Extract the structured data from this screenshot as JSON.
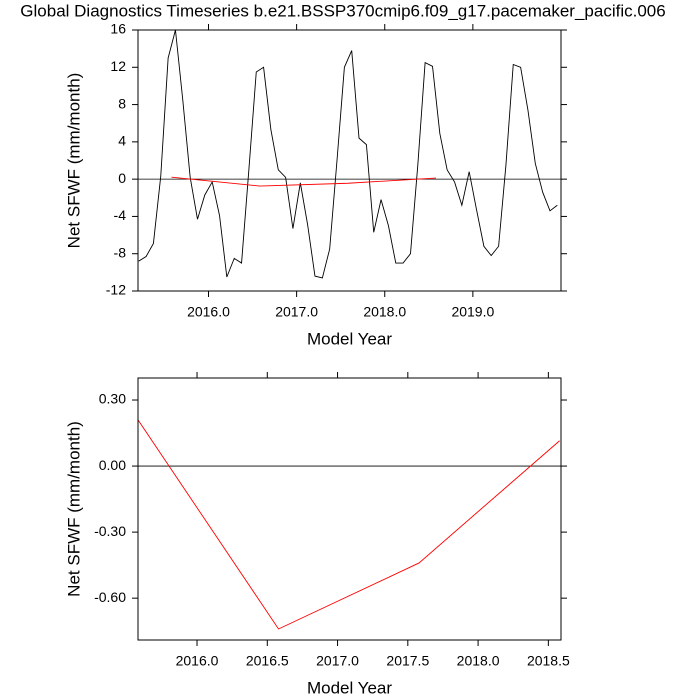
{
  "chart_data": [
    {
      "type": "line",
      "title": "Global Diagnostics Timeseries b.e21.BSSP370cmip6.f09_g17.pacemaker_pacific.006",
      "ylabel": "Net SFWF (mm/month)",
      "xlabel": "Model Year",
      "xlim": [
        2015.2,
        2020.0
      ],
      "ylim": [
        -12,
        16
      ],
      "xticks": [
        {
          "value": 2016,
          "label": "2016.0"
        },
        {
          "value": 2017,
          "label": "2017.0"
        },
        {
          "value": 2018,
          "label": "2018.0"
        },
        {
          "value": 2019,
          "label": "2019.0"
        }
      ],
      "yticks": [
        -12,
        -8,
        -4,
        0,
        4,
        8,
        12,
        16
      ],
      "reference_line": 0,
      "series": [
        {
          "color": "#000000",
          "x": [
            2015.208,
            2015.292,
            2015.375,
            2015.458,
            2015.542,
            2015.625,
            2015.708,
            2015.792,
            2015.875,
            2015.958,
            2016.042,
            2016.125,
            2016.208,
            2016.292,
            2016.375,
            2016.458,
            2016.542,
            2016.625,
            2016.708,
            2016.792,
            2016.875,
            2016.958,
            2017.042,
            2017.125,
            2017.208,
            2017.292,
            2017.375,
            2017.458,
            2017.542,
            2017.625,
            2017.708,
            2017.792,
            2017.875,
            2017.958,
            2018.042,
            2018.125,
            2018.208,
            2018.292,
            2018.375,
            2018.458,
            2018.542,
            2018.625,
            2018.708,
            2018.792,
            2018.875,
            2018.958,
            2019.042,
            2019.125,
            2019.208,
            2019.292,
            2019.375,
            2019.458,
            2019.542,
            2019.625,
            2019.708,
            2019.792,
            2019.875,
            2019.958
          ],
          "values": [
            -8.8,
            -8.3,
            -6.9,
            0.3,
            13,
            16,
            8.5,
            0.2,
            -4.3,
            -1.7,
            -0.3,
            -3.9,
            -10.5,
            -8.5,
            -9,
            1,
            11.5,
            12,
            5.3,
            1,
            0.2,
            -5.3,
            -0.4,
            -4.9,
            -10.4,
            -10.6,
            -7.5,
            2,
            12,
            13.8,
            4.4,
            3.7,
            -5.7,
            -2.2,
            -5,
            -9,
            -9,
            -8,
            1.5,
            12.5,
            12.1,
            4.9,
            1,
            -0.3,
            -2.8,
            0.8,
            -3.3,
            -7.2,
            -8.2,
            -7.2,
            1.5,
            12.3,
            12,
            7.4,
            1.7,
            -1.4,
            -3.4,
            -2.8
          ]
        },
        {
          "color": "#ff0000",
          "x": [
            2015.58,
            2016.58,
            2017.58,
            2018.58
          ],
          "values": [
            0.21,
            -0.74,
            -0.44,
            0.115
          ]
        }
      ]
    },
    {
      "type": "line",
      "ylabel": "Net SFWF (mm/month)",
      "xlabel": "Model Year",
      "xlim": [
        2015.58,
        2018.59
      ],
      "ylim": [
        -0.79,
        0.4
      ],
      "xticks": [
        {
          "value": 2016,
          "label": "2016.0"
        },
        {
          "value": 2016.5,
          "label": "2016.5"
        },
        {
          "value": 2017,
          "label": "2017.0"
        },
        {
          "value": 2017.5,
          "label": "2017.5"
        },
        {
          "value": 2018,
          "label": "2018.0"
        },
        {
          "value": 2018.5,
          "label": "2018.5"
        }
      ],
      "yticks": [
        {
          "value": -0.6,
          "label": "-0.60"
        },
        {
          "value": -0.3,
          "label": "-0.30"
        },
        {
          "value": 0,
          "label": "0.00"
        },
        {
          "value": 0.3,
          "label": "0.30"
        }
      ],
      "reference_line": 0,
      "series": [
        {
          "color": "#ff0000",
          "x": [
            2015.58,
            2016.58,
            2017.58,
            2018.58
          ],
          "values": [
            0.21,
            -0.74,
            -0.44,
            0.115
          ]
        }
      ]
    }
  ]
}
